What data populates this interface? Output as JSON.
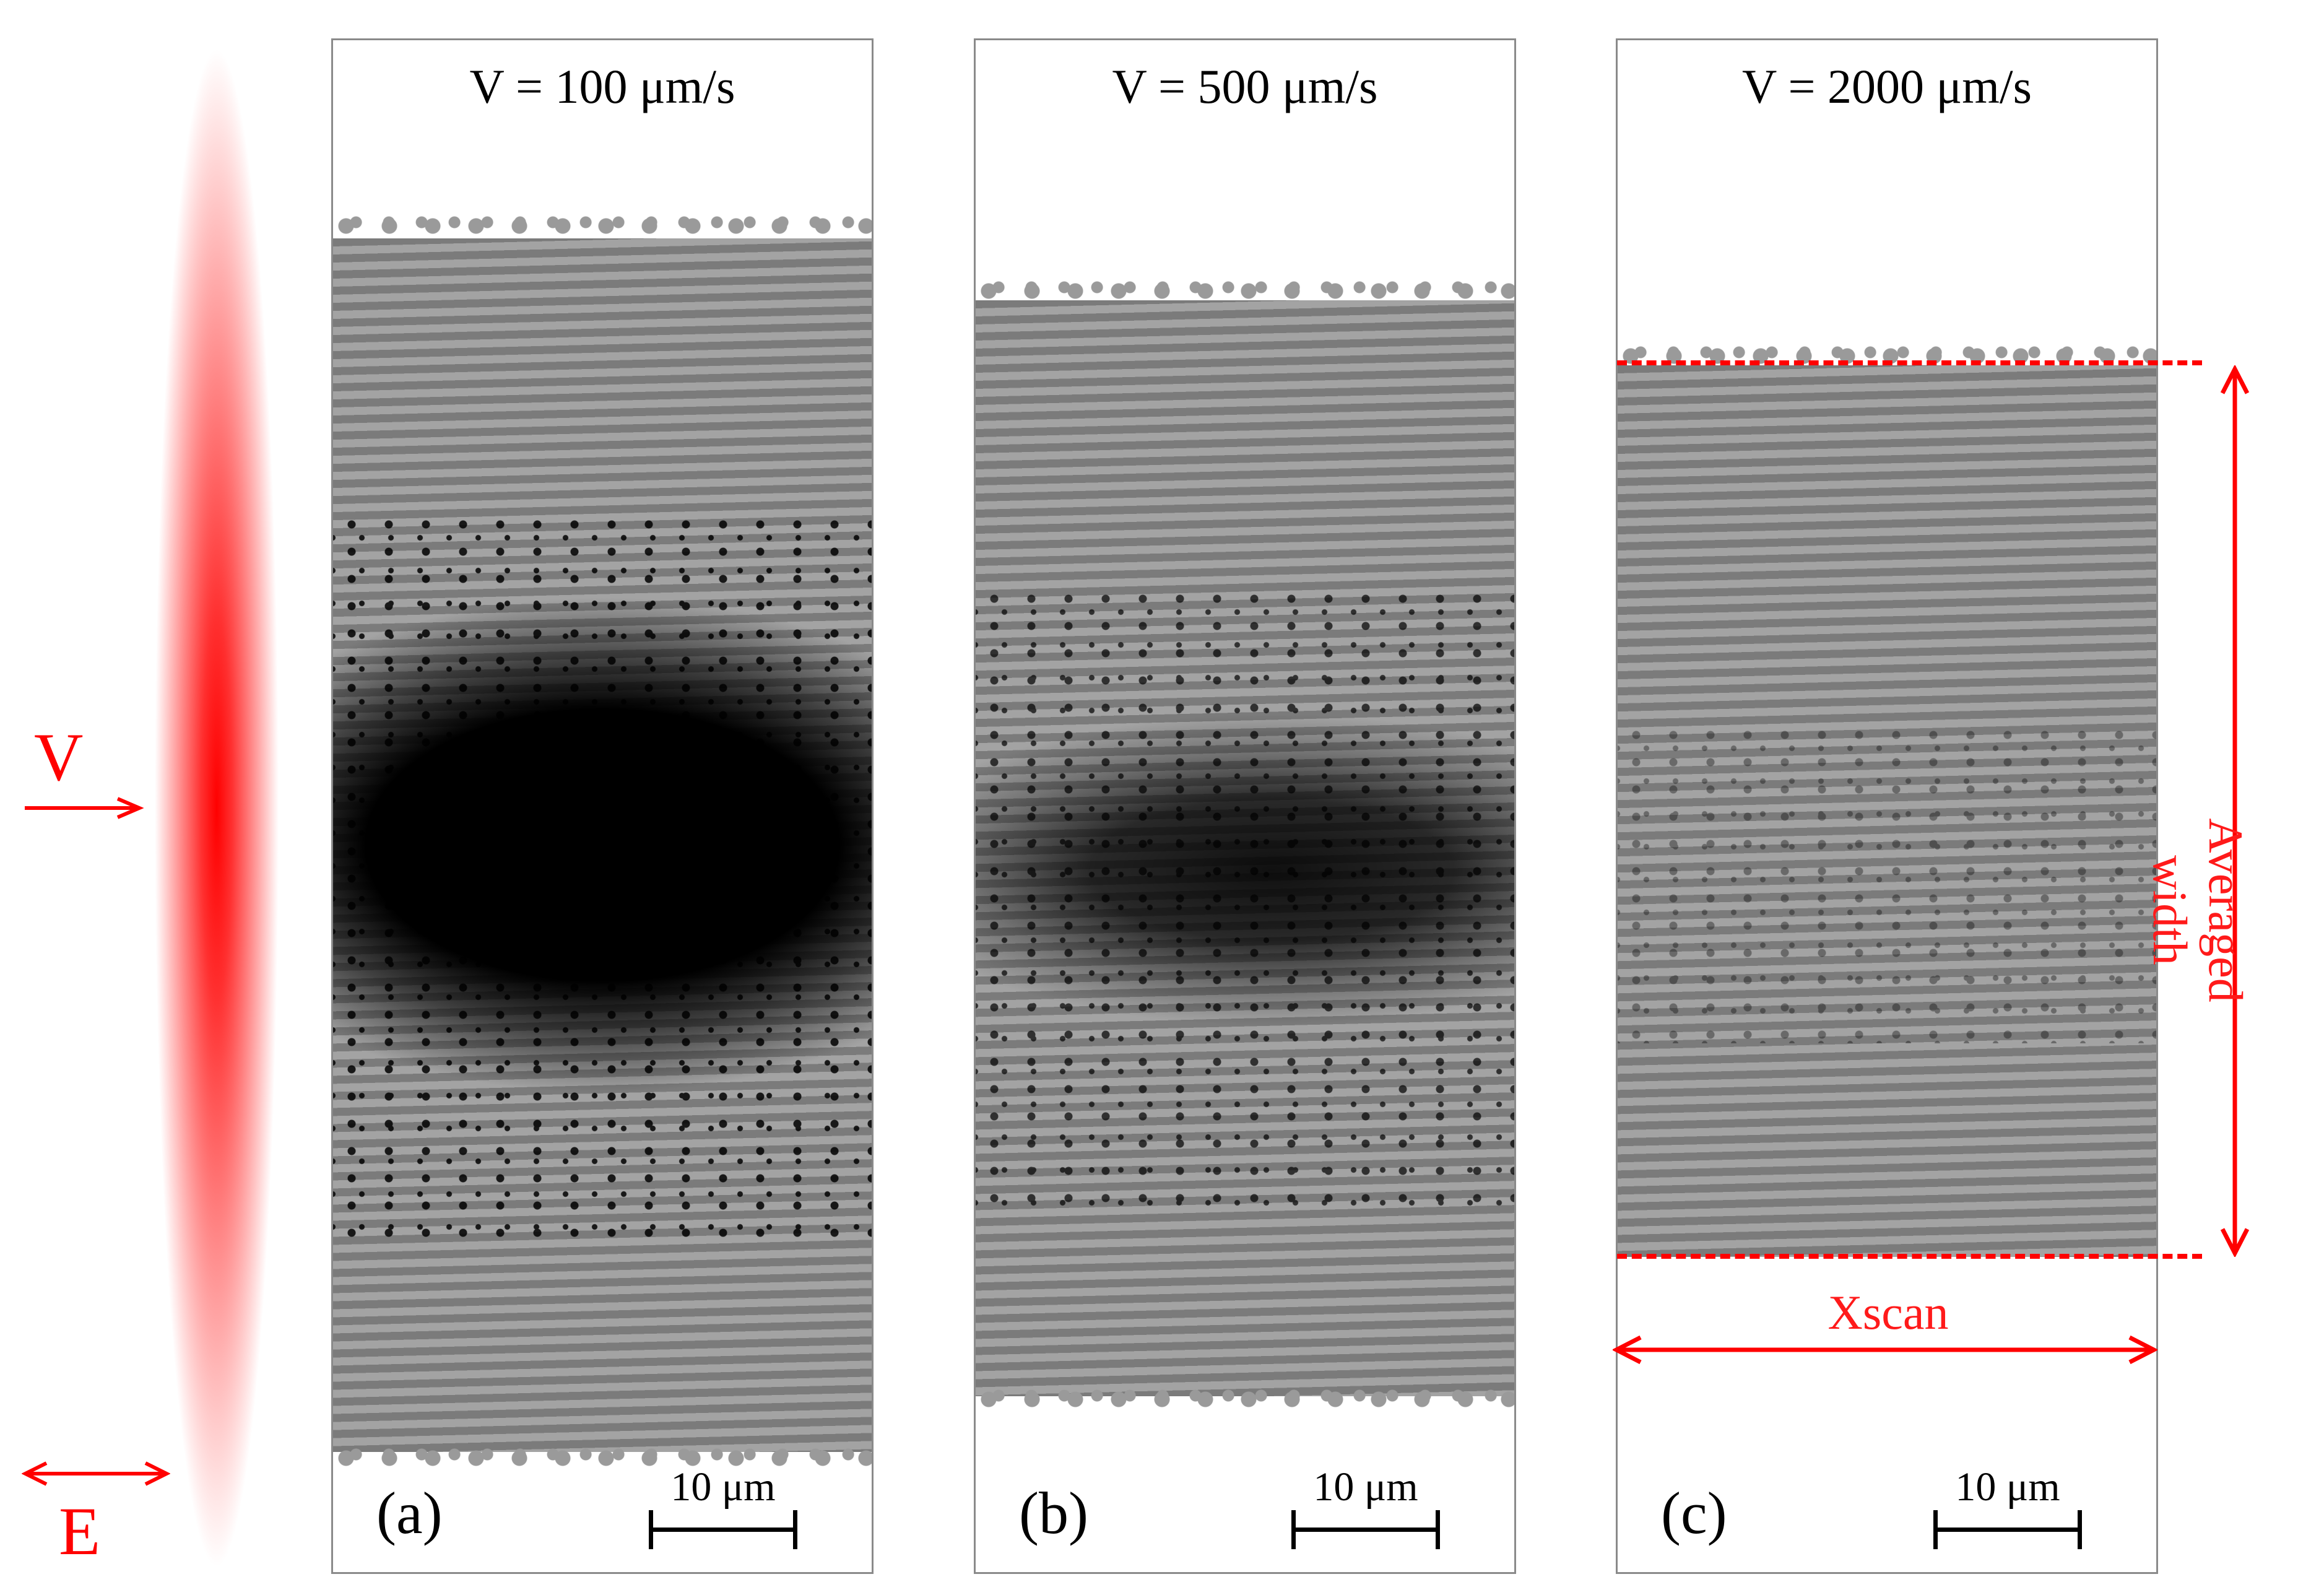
{
  "left_legend": {
    "velocity_label": "V",
    "field_label": "E",
    "beam_color": "#ff0000"
  },
  "panels": [
    {
      "id": "a",
      "title": "V = 100 μm/s",
      "letter": "(a)",
      "scale_label": "10 μm"
    },
    {
      "id": "b",
      "title": "V = 500 μm/s",
      "letter": "(b)",
      "scale_label": "10 μm"
    },
    {
      "id": "c",
      "title": "V = 2000 μm/s",
      "letter": "(c)",
      "scale_label": "10 μm"
    }
  ],
  "annotations": {
    "width_label": "Averaged width",
    "scan_label": "Xscan",
    "color": "#ff0000"
  }
}
